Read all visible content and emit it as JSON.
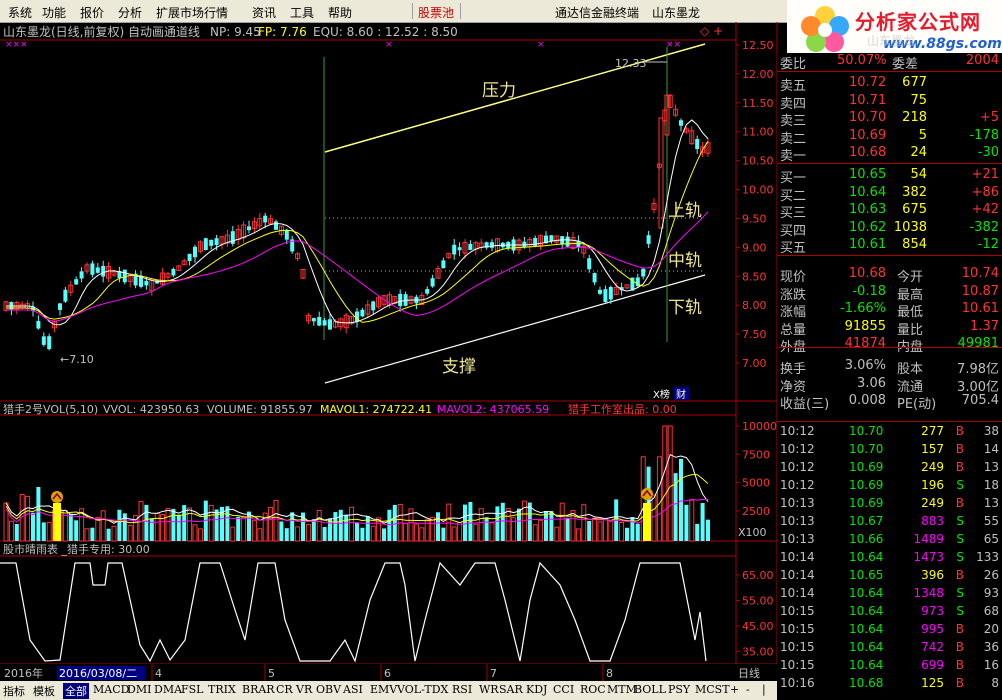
{
  "menu": {
    "items": [
      "系统",
      "功能",
      "报价",
      "分析",
      "扩展市场行情",
      "资讯",
      "工具",
      "帮助"
    ],
    "highlight": "股票池",
    "right_items": [
      "通达信金融终端",
      "山东墨龙"
    ]
  },
  "logo": {
    "text": "分析家公式网",
    "url": "www.88gs.com",
    "watermark": "山东墨龙"
  },
  "chart": {
    "title": "山东墨龙(日线,前复权) 自动画通道线",
    "np": "NP: 9.45",
    "fp": "FP: 7.76",
    "equ": "EQU: 8.60 : 12.52 : 8.50",
    "labels": {
      "pressure": "压力",
      "support": "支撑",
      "upper": "上轨",
      "middle": "中轨",
      "lower": "下轨"
    },
    "high_label": "12.33",
    "low_label": "←7.10",
    "tags": {
      "rank": "X榜",
      "fin": "财"
    },
    "y_ticks": [
      "12.50",
      "12.00",
      "11.50",
      "11.00",
      "10.50",
      "10.00",
      "9.50",
      "9.00",
      "8.50",
      "8.00",
      "7.50",
      "7.00"
    ]
  },
  "vol": {
    "title": "猎手2号VOL(5,10)",
    "vvol": "VVOL: 423950.63",
    "volume": "VOLUME: 91855.97",
    "mavol1": "MAVOL1: 274722.41",
    "mavol2": "MAVOL2: 437065.59",
    "studio": "猎手工作室出品: 0.00",
    "y_ticks": [
      "10000",
      "7500",
      "5000",
      "2500"
    ],
    "unit": "X100"
  },
  "ind": {
    "title": "股市晴雨表 _猎手专用: 30.00",
    "y_ticks": [
      "65.00",
      "55.00",
      "45.00",
      "35.00"
    ]
  },
  "dates": {
    "year": "2016年",
    "current": "2016/03/08/二",
    "months": [
      "4",
      "5",
      "6",
      "7",
      "8"
    ],
    "period": "日线"
  },
  "tabs": {
    "items": [
      "指标",
      "模板",
      "全部",
      "MACD",
      "DMI",
      "DMA",
      "FSL",
      "TRIX",
      "BRAR",
      "CR",
      "VR",
      "OBV",
      "ASI",
      "EMV",
      "VOL-TDX",
      "RSI",
      "WR",
      "SAR",
      "KDJ",
      "CCI",
      "ROC",
      "MTM",
      "BOLL",
      "PSY",
      "MCST"
    ],
    "active": "全部",
    "controls": [
      "+",
      "-",
      "|"
    ]
  },
  "quote": {
    "weibi_label": "委比",
    "weibi": "50.07%",
    "weicha_label": "委差",
    "weicha": "2004",
    "asks": [
      {
        "label": "卖五",
        "price": "10.72",
        "vol": "677",
        "chg": ""
      },
      {
        "label": "卖四",
        "price": "10.71",
        "vol": "75",
        "chg": ""
      },
      {
        "label": "卖三",
        "price": "10.70",
        "vol": "218",
        "chg": "+5"
      },
      {
        "label": "卖二",
        "price": "10.69",
        "vol": "5",
        "chg": "-178"
      },
      {
        "label": "卖一",
        "price": "10.68",
        "vol": "24",
        "chg": "-30"
      }
    ],
    "bids": [
      {
        "label": "买一",
        "price": "10.65",
        "vol": "54",
        "chg": "+21"
      },
      {
        "label": "买二",
        "price": "10.64",
        "vol": "382",
        "chg": "+86"
      },
      {
        "label": "买三",
        "price": "10.63",
        "vol": "675",
        "chg": "+42"
      },
      {
        "label": "买四",
        "price": "10.62",
        "vol": "1038",
        "chg": "-382"
      },
      {
        "label": "买五",
        "price": "10.61",
        "vol": "854",
        "chg": "-12"
      }
    ],
    "stats1": [
      {
        "l1": "现价",
        "v1": "10.68",
        "l2": "今开",
        "v2": "10.74"
      },
      {
        "l1": "涨跌",
        "v1": "-0.18",
        "l2": "最高",
        "v2": "10.87"
      },
      {
        "l1": "涨幅",
        "v1": "-1.66%",
        "l2": "最低",
        "v2": "10.61"
      },
      {
        "l1": "总量",
        "v1": "91855",
        "l2": "量比",
        "v2": "1.37"
      },
      {
        "l1": "外盘",
        "v1": "41874",
        "l2": "内盘",
        "v2": "49981"
      }
    ],
    "stats2": [
      {
        "l1": "换手",
        "v1": "3.06%",
        "l2": "股本",
        "v2": "7.98亿"
      },
      {
        "l1": "净资",
        "v1": "3.06",
        "l2": "流通",
        "v2": "3.00亿"
      },
      {
        "l1": "收益(三)",
        "v1": "0.008",
        "l2": "PE(动)",
        "v2": "705.4"
      }
    ]
  },
  "ticks": [
    {
      "t": "10:12",
      "p": "10.70",
      "v": "277",
      "s": "B",
      "n": "38"
    },
    {
      "t": "10:12",
      "p": "10.70",
      "v": "157",
      "s": "B",
      "n": "14"
    },
    {
      "t": "10:12",
      "p": "10.69",
      "v": "249",
      "s": "B",
      "n": "13"
    },
    {
      "t": "10:12",
      "p": "10.69",
      "v": "196",
      "s": "S",
      "n": "18"
    },
    {
      "t": "10:13",
      "p": "10.69",
      "v": "249",
      "s": "B",
      "n": "13"
    },
    {
      "t": "10:13",
      "p": "10.67",
      "v": "883",
      "s": "S",
      "n": "55"
    },
    {
      "t": "10:13",
      "p": "10.66",
      "v": "1489",
      "s": "S",
      "n": "65"
    },
    {
      "t": "10:14",
      "p": "10.64",
      "v": "1473",
      "s": "S",
      "n": "133"
    },
    {
      "t": "10:14",
      "p": "10.65",
      "v": "396",
      "s": "B",
      "n": "26"
    },
    {
      "t": "10:14",
      "p": "10.64",
      "v": "1348",
      "s": "S",
      "n": "93"
    },
    {
      "t": "10:15",
      "p": "10.64",
      "v": "973",
      "s": "S",
      "n": "68"
    },
    {
      "t": "10:15",
      "p": "10.64",
      "v": "995",
      "s": "B",
      "n": "20"
    },
    {
      "t": "10:15",
      "p": "10.64",
      "v": "742",
      "s": "B",
      "n": "36"
    },
    {
      "t": "10:15",
      "p": "10.64",
      "v": "699",
      "s": "B",
      "n": "16"
    },
    {
      "t": "10:16",
      "p": "10.68",
      "v": "125",
      "s": "B",
      "n": "8"
    }
  ],
  "colors": {
    "up": "#ff3232",
    "down": "#54ffff",
    "text": "#c0c0c0",
    "yellow": "#ffff00",
    "magenta": "#ff00ff",
    "green": "#00e600",
    "bg": "#000000"
  }
}
